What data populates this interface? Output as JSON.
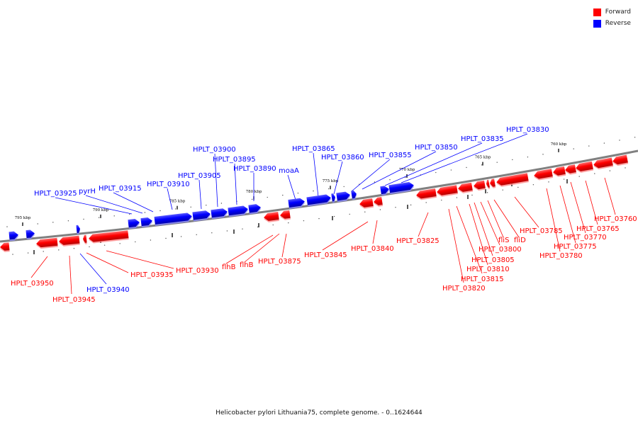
{
  "caption": "Helicobacter pylori Lithuania75, complete genome. - 0..1624644",
  "legend": [
    {
      "label": "Forward",
      "color": "#ff0000"
    },
    {
      "label": "Reverse",
      "color": "#0000ff"
    }
  ],
  "colors": {
    "forward": "#ff0000",
    "reverse": "#0000ff",
    "backbone": "#808080"
  },
  "ticks": [
    "795 kbp",
    "790 kbp",
    "785 kbp",
    "780 kbp",
    "775 kbp",
    "770 kbp",
    "765 kbp",
    "760 kbp"
  ],
  "genes": [
    {
      "label": "HPLT_03925",
      "strand": "reverse"
    },
    {
      "label": "pyrH",
      "strand": "reverse"
    },
    {
      "label": "HPLT_03915",
      "strand": "reverse"
    },
    {
      "label": "HPLT_03910",
      "strand": "reverse"
    },
    {
      "label": "HPLT_03905",
      "strand": "reverse"
    },
    {
      "label": "HPLT_03900",
      "strand": "reverse"
    },
    {
      "label": "HPLT_03895",
      "strand": "reverse"
    },
    {
      "label": "HPLT_03890",
      "strand": "reverse"
    },
    {
      "label": "moaA",
      "strand": "reverse"
    },
    {
      "label": "HPLT_03865",
      "strand": "reverse"
    },
    {
      "label": "HPLT_03860",
      "strand": "reverse"
    },
    {
      "label": "HPLT_03855",
      "strand": "reverse"
    },
    {
      "label": "HPLT_03850",
      "strand": "reverse"
    },
    {
      "label": "HPLT_03835",
      "strand": "reverse"
    },
    {
      "label": "HPLT_03830",
      "strand": "reverse"
    },
    {
      "label": "HPLT_03940",
      "strand": "reverse"
    },
    {
      "label": "HPLT_03950",
      "strand": "forward"
    },
    {
      "label": "HPLT_03945",
      "strand": "forward"
    },
    {
      "label": "HPLT_03935",
      "strand": "forward"
    },
    {
      "label": "HPLT_03930",
      "strand": "forward"
    },
    {
      "label": "flhB",
      "strand": "forward"
    },
    {
      "label": "flhB",
      "strand": "forward"
    },
    {
      "label": "HPLT_03875",
      "strand": "forward"
    },
    {
      "label": "HPLT_03845",
      "strand": "forward"
    },
    {
      "label": "HPLT_03840",
      "strand": "forward"
    },
    {
      "label": "HPLT_03825",
      "strand": "forward"
    },
    {
      "label": "HPLT_03820",
      "strand": "forward"
    },
    {
      "label": "HPLT_03815",
      "strand": "forward"
    },
    {
      "label": "HPLT_03810",
      "strand": "forward"
    },
    {
      "label": "HPLT_03805",
      "strand": "forward"
    },
    {
      "label": "HPLT_03800",
      "strand": "forward"
    },
    {
      "label": "fliS",
      "strand": "forward"
    },
    {
      "label": "fliD",
      "strand": "forward"
    },
    {
      "label": "HPLT_03785",
      "strand": "forward"
    },
    {
      "label": "HPLT_03780",
      "strand": "forward"
    },
    {
      "label": "HPLT_03775",
      "strand": "forward"
    },
    {
      "label": "HPLT_03770",
      "strand": "forward"
    },
    {
      "label": "HPLT_03765",
      "strand": "forward"
    },
    {
      "label": "HPLT_03760",
      "strand": "forward"
    }
  ]
}
